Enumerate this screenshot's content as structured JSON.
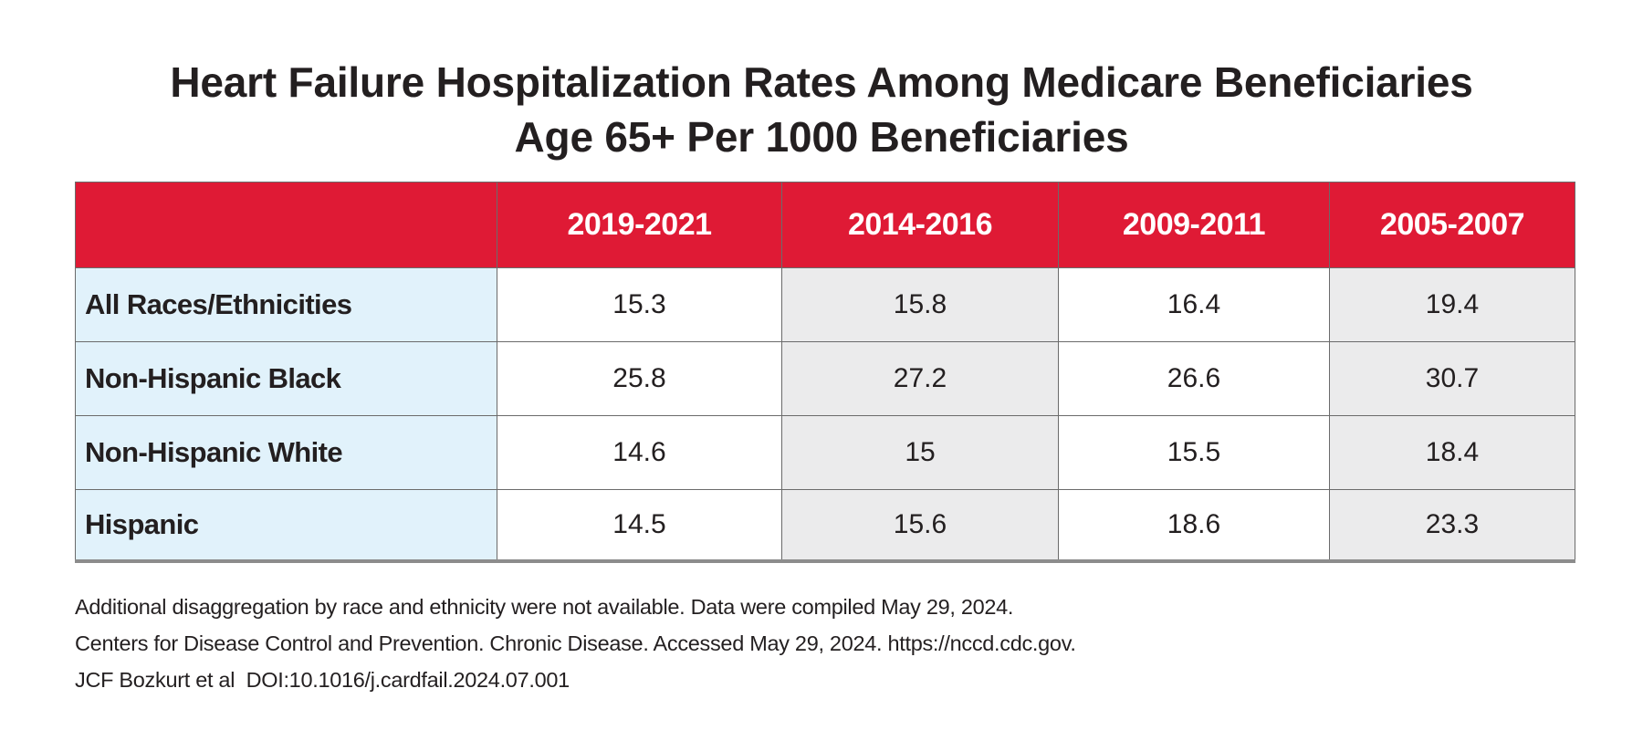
{
  "title": {
    "line1": "Heart Failure Hospitalization Rates Among Medicare Beneficiaries",
    "line2": "Age 65+ Per 1000 Beneficiaries"
  },
  "colors": {
    "header_bg": "#df1a35",
    "header_text": "#ffffff",
    "row_label_bg": "#e1f2fb",
    "alt_column_bg": "#ebebec"
  },
  "chart_data": {
    "type": "table",
    "title": "Heart Failure Hospitalization Rates Among Medicare Beneficiaries Age 65+ Per 1000 Beneficiaries",
    "columns": [
      "",
      "2019-2021",
      "2014-2016",
      "2009-2011",
      "2005-2007"
    ],
    "categories": [
      "2019-2021",
      "2014-2016",
      "2009-2011",
      "2005-2007"
    ],
    "rows": [
      {
        "label": "All Races/Ethnicities",
        "values": [
          "15.3",
          "15.8",
          "16.4",
          "19.4"
        ]
      },
      {
        "label": "Non-Hispanic Black",
        "values": [
          "25.8",
          "27.2",
          "26.6",
          "30.7"
        ]
      },
      {
        "label": "Non-Hispanic White",
        "values": [
          "14.6",
          "15",
          "15.5",
          "18.4"
        ]
      },
      {
        "label": "Hispanic",
        "values": [
          "14.5",
          "15.6",
          "18.6",
          "23.3"
        ]
      }
    ]
  },
  "notes": [
    "Additional disaggregation by race and ethnicity were not available. Data were compiled May 29, 2024.",
    "Centers for Disease Control and Prevention. Chronic Disease. Accessed May 29, 2024. https://nccd.cdc.gov.",
    "JCF Bozkurt et al  DOI:10.1016/j.cardfail.2024.07.001"
  ]
}
